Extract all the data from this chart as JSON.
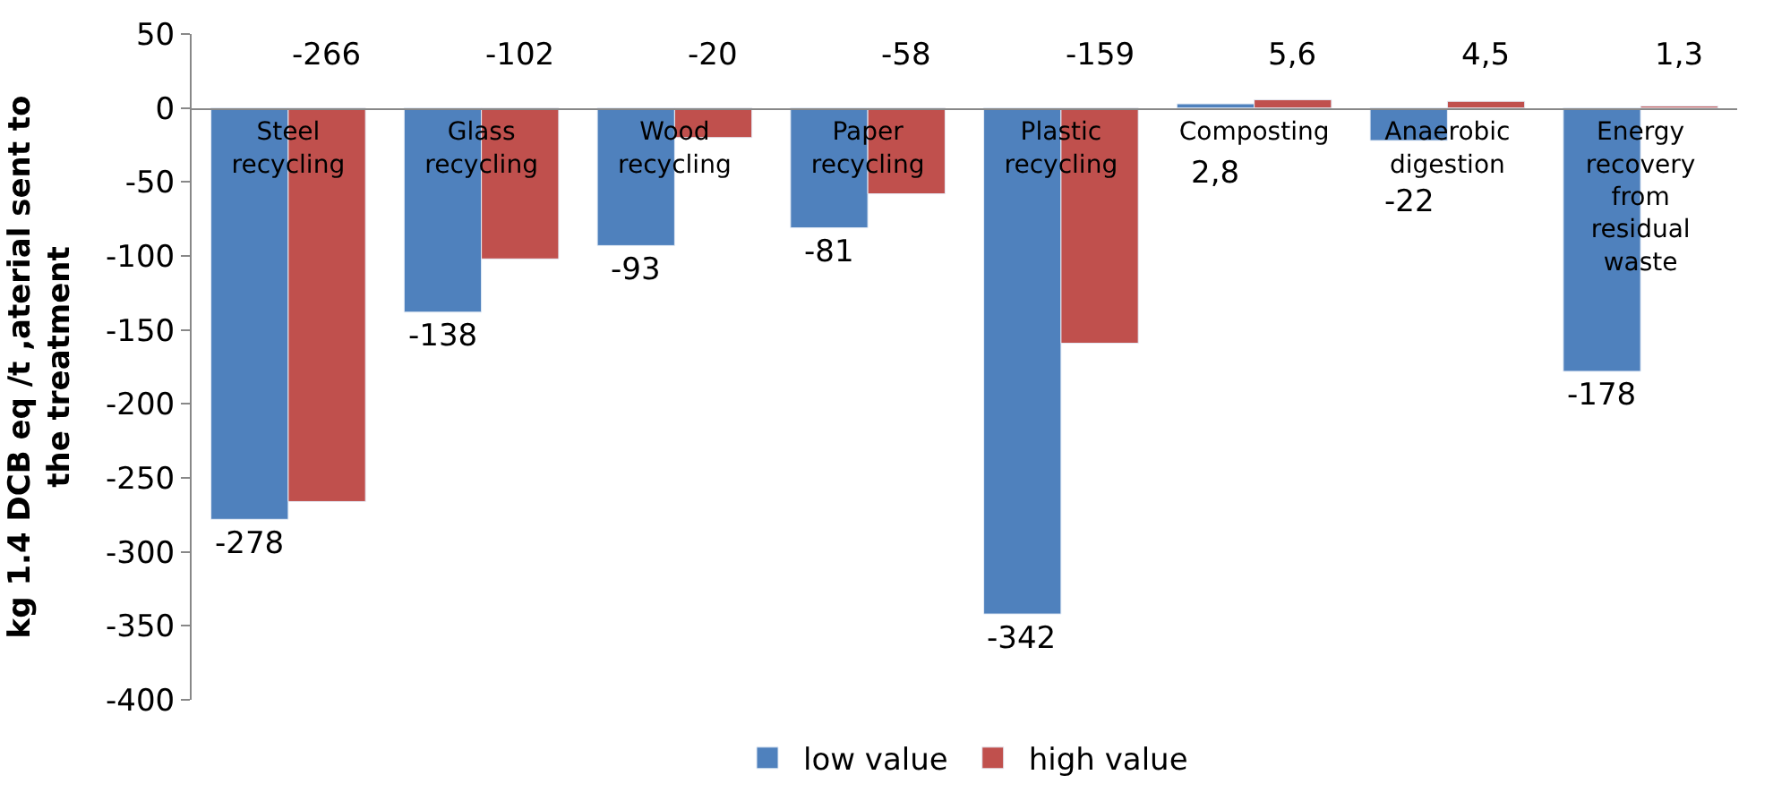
{
  "chart_data": {
    "type": "bar",
    "ylabel": "kg 1.4 DCB eq /t ,aterial sent to the treatment",
    "categories": [
      "Steel recycling",
      "Glass recycling",
      "Wood recycling",
      "Paper recycling",
      "Plastic recycling",
      "Composting",
      "Anaerobic digestion",
      "Energy recovery from residual waste"
    ],
    "series": [
      {
        "name": "low value",
        "color": "#4f81bd",
        "values": [
          -278,
          -138,
          -93,
          -81,
          -342,
          2.8,
          -22,
          -178
        ],
        "value_labels": [
          "-278",
          "-138",
          "-93",
          "-81",
          "-342",
          "2,8",
          "-22",
          "-178"
        ]
      },
      {
        "name": "high value",
        "color": "#c0504d",
        "values": [
          -266,
          -102,
          -20,
          -58,
          -159,
          5.6,
          4.5,
          1.3
        ],
        "value_labels": [
          "-266",
          "-102",
          "-20",
          "-58",
          "-159",
          "5,6",
          "4,5",
          "1,3"
        ]
      }
    ],
    "ylim": [
      -400,
      50
    ],
    "yticks": [
      -400,
      -350,
      -300,
      -250,
      -200,
      -150,
      -100,
      -50,
      0,
      50
    ],
    "legend": "bottom"
  }
}
